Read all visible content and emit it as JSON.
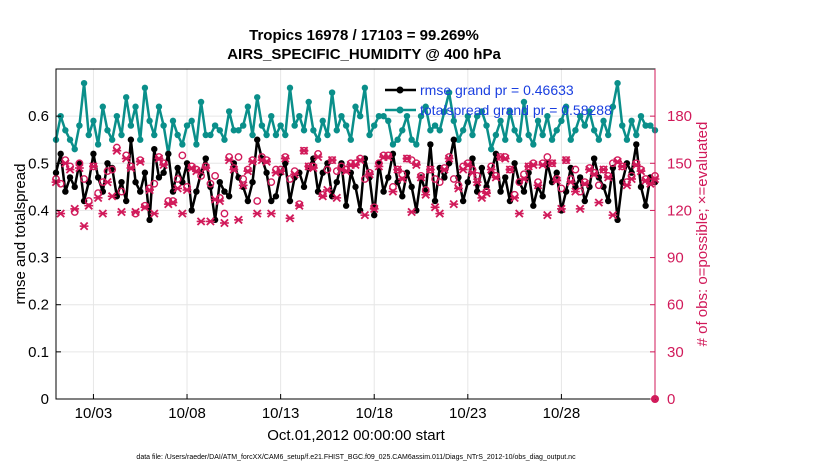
{
  "chart_data": {
    "type": "line",
    "title_line1": "Tropics 16978 / 17103 = 99.269%",
    "title_line2": "AIRS_SPECIFIC_HUMIDITY @ 400 hPa",
    "xlabel": "Oct.01,2012 00:00:00 start",
    "ylabel_left": "rmse and totalspread",
    "ylabel_right": "# of obs: o=possible; ×=evaluated",
    "xlim": [
      1,
      33
    ],
    "ylim_left": [
      0,
      0.7
    ],
    "ylim_right": [
      0,
      210
    ],
    "x_ticks": [
      3,
      8,
      13,
      18,
      23,
      28
    ],
    "x_tick_labels": [
      "10/03",
      "10/08",
      "10/13",
      "10/18",
      "10/23",
      "10/28"
    ],
    "y_ticks_left": [
      0,
      0.1,
      0.2,
      0.3,
      0.4,
      0.5,
      0.6
    ],
    "y_tick_labels_left": [
      "0",
      "0.1",
      "0.2",
      "0.3",
      "0.4",
      "0.5",
      "0.6"
    ],
    "y_ticks_right": [
      0,
      30,
      60,
      90,
      120,
      150,
      180
    ],
    "y_tick_labels_right": [
      "0",
      "30",
      "60",
      "90",
      "120",
      "150",
      "180"
    ],
    "grid": true,
    "legend_position": "top-right",
    "x_start": 1.0,
    "x_step": 0.25,
    "series": [
      {
        "name": "rmse grand pr = 0.46633",
        "color": "#000000",
        "axis": "left",
        "values": [
          0.48,
          0.52,
          0.44,
          0.47,
          0.45,
          0.5,
          0.42,
          0.46,
          0.52,
          0.47,
          0.44,
          0.5,
          0.49,
          0.43,
          0.46,
          0.42,
          0.55,
          0.46,
          0.44,
          0.48,
          0.38,
          0.53,
          0.47,
          0.48,
          0.52,
          0.44,
          0.49,
          0.46,
          0.5,
          0.4,
          0.44,
          0.48,
          0.51,
          0.45,
          0.38,
          0.46,
          0.44,
          0.43,
          0.5,
          0.47,
          0.45,
          0.42,
          0.46,
          0.55,
          0.51,
          0.48,
          0.42,
          0.43,
          0.48,
          0.5,
          0.42,
          0.47,
          0.48,
          0.45,
          0.49,
          0.51,
          0.44,
          0.48,
          0.5,
          0.43,
          0.46,
          0.5,
          0.41,
          0.48,
          0.45,
          0.4,
          0.51,
          0.47,
          0.39,
          0.5,
          0.44,
          0.47,
          0.52,
          0.46,
          0.43,
          0.48,
          0.45,
          0.4,
          0.47,
          0.44,
          0.54,
          0.42,
          0.49,
          0.47,
          0.5,
          0.55,
          0.47,
          0.42,
          0.46,
          0.51,
          0.44,
          0.49,
          0.45,
          0.48,
          0.52,
          0.44,
          0.47,
          0.42,
          0.5,
          0.46,
          0.44,
          0.48,
          0.41,
          0.45,
          0.43,
          0.5,
          0.46,
          0.48,
          0.4,
          0.44,
          0.49,
          0.45,
          0.47,
          0.42,
          0.45,
          0.51,
          0.47,
          0.45,
          0.42,
          0.49,
          0.38,
          0.46,
          0.5,
          0.48,
          0.54,
          0.45,
          0.41,
          0.47,
          0.46
        ]
      },
      {
        "name": "totalspread grand pr = 0.58288",
        "color": "#0a8f8a",
        "axis": "left",
        "values": [
          0.55,
          0.6,
          0.57,
          0.55,
          0.53,
          0.58,
          0.67,
          0.56,
          0.59,
          0.54,
          0.62,
          0.57,
          0.55,
          0.6,
          0.56,
          0.64,
          0.58,
          0.62,
          0.55,
          0.66,
          0.59,
          0.56,
          0.62,
          0.58,
          0.52,
          0.59,
          0.56,
          0.54,
          0.58,
          0.59,
          0.54,
          0.63,
          0.56,
          0.56,
          0.58,
          0.57,
          0.55,
          0.61,
          0.57,
          0.57,
          0.58,
          0.62,
          0.56,
          0.64,
          0.58,
          0.56,
          0.6,
          0.56,
          0.58,
          0.56,
          0.66,
          0.58,
          0.6,
          0.57,
          0.63,
          0.57,
          0.55,
          0.59,
          0.56,
          0.65,
          0.57,
          0.6,
          0.58,
          0.55,
          0.62,
          0.6,
          0.66,
          0.56,
          0.58,
          0.6,
          0.6,
          0.59,
          0.54,
          0.55,
          0.57,
          0.6,
          0.55,
          0.54,
          0.6,
          0.62,
          0.57,
          0.58,
          0.57,
          0.61,
          0.65,
          0.59,
          0.55,
          0.57,
          0.6,
          0.56,
          0.6,
          0.61,
          0.58,
          0.53,
          0.56,
          0.59,
          0.55,
          0.61,
          0.57,
          0.55,
          0.63,
          0.56,
          0.54,
          0.59,
          0.56,
          0.6,
          0.55,
          0.57,
          0.59,
          0.62,
          0.55,
          0.57,
          0.6,
          0.58,
          0.61,
          0.57,
          0.55,
          0.59,
          0.56,
          0.62,
          0.67,
          0.58,
          0.55,
          0.59,
          0.56,
          0.6,
          0.58,
          0.58,
          0.57
        ]
      },
      {
        "name": "obs possible",
        "color": "#d11a5a",
        "axis": "right",
        "values": [
          140,
          137,
          152,
          148,
          119,
          150,
          140,
          126,
          148,
          131,
          138,
          145,
          146,
          160,
          132,
          155,
          148,
          118,
          152,
          123,
          134,
          137,
          154,
          150,
          126,
          126,
          140,
          155,
          135,
          148,
          146,
          142,
          148,
          137,
          142,
          128,
          118,
          154,
          147,
          154,
          140,
          146,
          152,
          126,
          154,
          152,
          138,
          146,
          146,
          154,
          140,
          145,
          124,
          158,
          148,
          148,
          156,
          130,
          146,
          152,
          145,
          148,
          146,
          150,
          150,
          153,
          140,
          144,
          122,
          150,
          155,
          155,
          135,
          146,
          143,
          153,
          152,
          150,
          142,
          133,
          146,
          140,
          138,
          147,
          154,
          140,
          136,
          148,
          150,
          146,
          142,
          130,
          132,
          148,
          142,
          154,
          154,
          146,
          130,
          138,
          143,
          148,
          150,
          138,
          150,
          154,
          150,
          140,
          134,
          152,
          140,
          146,
          132,
          138,
          147,
          144,
          136,
          146,
          142,
          150,
          152,
          148,
          138,
          142,
          150,
          146,
          140,
          138,
          142
        ]
      },
      {
        "name": "obs evaluated",
        "color": "#d11a5a",
        "axis": "right",
        "values": [
          138,
          118,
          150,
          146,
          121,
          147,
          110,
          123,
          148,
          128,
          118,
          138,
          129,
          158,
          119,
          153,
          147,
          119,
          151,
          122,
          133,
          118,
          153,
          149,
          124,
          125,
          134,
          118,
          133,
          147,
          145,
          113,
          147,
          113,
          127,
          126,
          112,
          152,
          146,
          114,
          136,
          145,
          151,
          118,
          152,
          151,
          118,
          144,
          145,
          153,
          115,
          143,
          123,
          158,
          148,
          147,
          154,
          129,
          133,
          152,
          128,
          146,
          145,
          149,
          149,
          152,
          117,
          143,
          121,
          148,
          154,
          154,
          132,
          146,
          140,
          153,
          119,
          149,
          141,
          130,
          146,
          122,
          118,
          146,
          153,
          124,
          134,
          146,
          149,
          144,
          138,
          128,
          131,
          146,
          141,
          154,
          153,
          146,
          128,
          118,
          140,
          148,
          149,
          136,
          149,
          117,
          150,
          139,
          121,
          152,
          138,
          132,
          121,
          137,
          146,
          143,
          125,
          146,
          141,
          117,
          151,
          148,
          136,
          140,
          149,
          145,
          139,
          137,
          140
        ]
      }
    ]
  },
  "footer": {
    "text": "data file: /Users/raeder/DAI/ATM_forcXX/CAM6_setup/f.e21.FHIST_BGC.f09_025.CAM6assim.011/Diags_NTrS_2012-10/obs_diag_output.nc"
  }
}
